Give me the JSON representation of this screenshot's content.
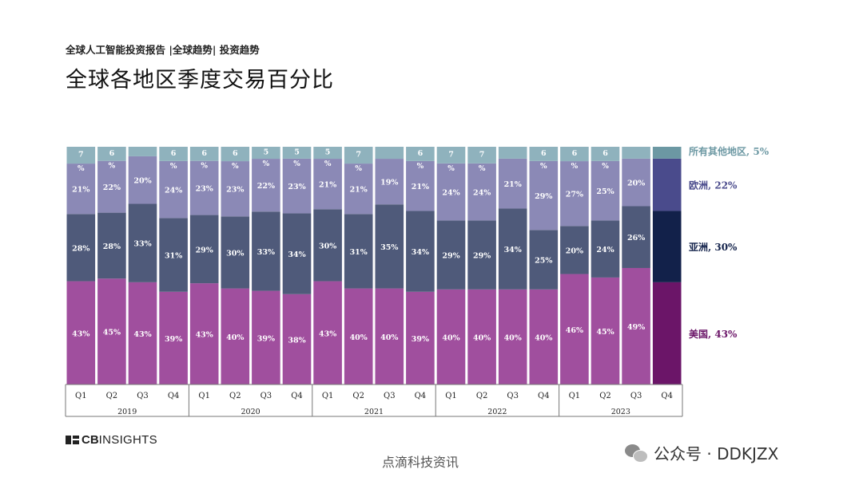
{
  "header": {
    "subtitle": "全球人工智能投资报告 |全球趋势| 投资趋势",
    "title": "全球各地区季度交易百分比"
  },
  "colors": {
    "us": "#a04f9e",
    "asia": "#4f5a7a",
    "europe": "#8b89b6",
    "other": "#8fb2bd",
    "us_latest": "#6b1568",
    "asia_latest": "#12214a",
    "europe_latest": "#4a4b8c",
    "other_latest": "#6c98a3",
    "label_text": "#ffffff"
  },
  "chart_data": {
    "type": "bar",
    "stacked": true,
    "normalized": true,
    "title": "全球各地区季度交易百分比",
    "categories": [
      "Q1",
      "Q2",
      "Q3",
      "Q4",
      "Q1",
      "Q2",
      "Q3",
      "Q4",
      "Q1",
      "Q2",
      "Q3",
      "Q4",
      "Q1",
      "Q2",
      "Q3",
      "Q4",
      "Q1",
      "Q2",
      "Q3",
      "Q4"
    ],
    "years": [
      {
        "label": "2019",
        "count": 4
      },
      {
        "label": "2020",
        "count": 4
      },
      {
        "label": "2021",
        "count": 4
      },
      {
        "label": "2022",
        "count": 4
      },
      {
        "label": "2023",
        "count": 4
      }
    ],
    "series": [
      {
        "name": "美国",
        "key": "us",
        "values": [
          43,
          45,
          43,
          39,
          43,
          40,
          39,
          38,
          43,
          40,
          40,
          39,
          40,
          40,
          40,
          40,
          46,
          45,
          49,
          43
        ]
      },
      {
        "name": "亚洲",
        "key": "asia",
        "values": [
          28,
          28,
          33,
          31,
          29,
          30,
          33,
          34,
          30,
          31,
          35,
          34,
          29,
          29,
          34,
          25,
          20,
          24,
          26,
          30
        ]
      },
      {
        "name": "欧洲",
        "key": "europe",
        "values": [
          21,
          22,
          20,
          24,
          23,
          23,
          22,
          23,
          21,
          21,
          19,
          21,
          24,
          24,
          21,
          29,
          27,
          25,
          20,
          22
        ]
      },
      {
        "name": "所有其他地区",
        "key": "other",
        "values": [
          7,
          6,
          4,
          6,
          6,
          6,
          5,
          5,
          5,
          7,
          5,
          6,
          7,
          7,
          5,
          6,
          6,
          6,
          5,
          5
        ]
      }
    ],
    "labels": {
      "us": [
        "43%",
        "45%",
        "43%",
        "39%",
        "43%",
        "40%",
        "39%",
        "38%",
        "43%",
        "40%",
        "40%",
        "39%",
        "40%",
        "40%",
        "40%",
        "40%",
        "46%",
        "45%",
        "49%",
        ""
      ],
      "asia": [
        "28%",
        "28%",
        "33%",
        "31%",
        "29%",
        "30%",
        "33%",
        "34%",
        "30%",
        "31%",
        "35%",
        "34%",
        "29%",
        "29%",
        "34%",
        "25%",
        "20%",
        "24%",
        "26%",
        ""
      ],
      "europe": [
        "21%",
        "22%",
        "20%",
        "24%",
        "23%",
        "23%",
        "22%",
        "23%",
        "21%",
        "21%",
        "19%",
        "21%",
        "24%",
        "24%",
        "21%",
        "29%",
        "27%",
        "25%",
        "20%",
        ""
      ],
      "other": [
        "7",
        "6",
        "",
        "6",
        "6",
        "6",
        "5",
        "5",
        "5",
        "7",
        "",
        "6",
        "7",
        "7",
        "",
        "6",
        "6",
        "6",
        "",
        ""
      ]
    },
    "ylim": [
      0,
      100
    ],
    "legend": [
      {
        "key": "other",
        "text": "所有其他地区, 5%",
        "value": 5
      },
      {
        "key": "europe",
        "text": "欧洲, 22%",
        "value": 22
      },
      {
        "key": "asia",
        "text": "亚洲, 30%",
        "value": 30
      },
      {
        "key": "us",
        "text": "美国, 43%",
        "value": 43
      }
    ],
    "legend_position": "right"
  },
  "footer": {
    "logo_cb": "CB",
    "logo_insights": "INSIGHTS",
    "source": "点滴科技资讯",
    "wechat": "公众号 · DDKJZX"
  }
}
